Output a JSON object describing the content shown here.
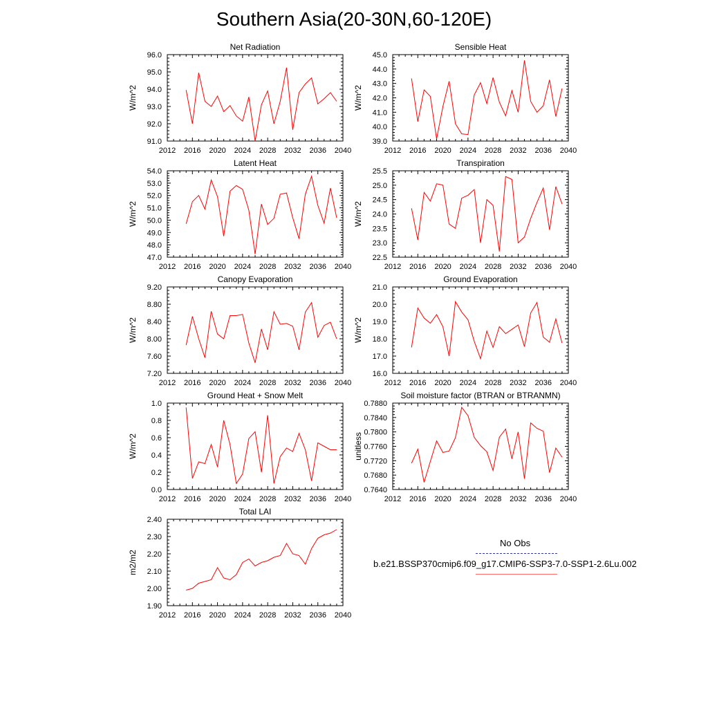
{
  "title": "Southern Asia(20-30N,60-120E)",
  "colors": {
    "model": "#ff0000",
    "obs": "#3333aa",
    "axis": "#000000"
  },
  "legend": {
    "obs_label": "No Obs",
    "model_label": "b.e21.BSSP370cmip6.f09_g17.CMIP6-SSP3-7.0-SSP1-2.6Lu.002"
  },
  "chart_data": [
    {
      "type": "line",
      "title": "Net Radiation",
      "ylabel": "W/m^2",
      "xlim": [
        2012,
        2040
      ],
      "ylim": [
        91.0,
        96.0
      ],
      "xticks": [
        2012,
        2016,
        2020,
        2024,
        2028,
        2032,
        2036,
        2040
      ],
      "yticks": [
        "91.0",
        "92.0",
        "93.0",
        "94.0",
        "95.0",
        "96.0"
      ],
      "x": [
        2015,
        2016,
        2017,
        2018,
        2019,
        2020,
        2021,
        2022,
        2023,
        2024,
        2025,
        2026,
        2027,
        2028,
        2029,
        2030,
        2031,
        2032,
        2033,
        2034,
        2035,
        2036,
        2037,
        2038,
        2039
      ],
      "series": [
        {
          "values": [
            93.95,
            92.0,
            94.95,
            93.3,
            93.0,
            93.6,
            92.7,
            93.05,
            92.45,
            92.15,
            93.55,
            91.0,
            93.1,
            93.9,
            92.0,
            93.3,
            95.25,
            91.65,
            93.8,
            94.3,
            94.65,
            93.15,
            93.45,
            93.8,
            93.3
          ]
        }
      ]
    },
    {
      "type": "line",
      "title": "Sensible Heat",
      "ylabel": "W/m^2",
      "xlim": [
        2012,
        2040
      ],
      "ylim": [
        39.0,
        45.0
      ],
      "xticks": [
        2012,
        2016,
        2020,
        2024,
        2028,
        2032,
        2036,
        2040
      ],
      "yticks": [
        "39.0",
        "40.0",
        "41.0",
        "42.0",
        "43.0",
        "44.0",
        "45.0"
      ],
      "x": [
        2015,
        2016,
        2017,
        2018,
        2019,
        2020,
        2021,
        2022,
        2023,
        2024,
        2025,
        2026,
        2027,
        2028,
        2029,
        2030,
        2031,
        2032,
        2033,
        2034,
        2035,
        2036,
        2037,
        2038,
        2039
      ],
      "series": [
        {
          "values": [
            43.35,
            40.35,
            42.55,
            42.1,
            39.15,
            41.4,
            43.15,
            40.2,
            39.5,
            39.45,
            42.2,
            43.05,
            41.6,
            43.4,
            41.7,
            40.75,
            42.5,
            41.0,
            44.6,
            41.75,
            41.0,
            41.45,
            43.25,
            40.7,
            42.65
          ]
        }
      ]
    },
    {
      "type": "line",
      "title": "Latent Heat",
      "ylabel": "W/m^2",
      "xlim": [
        2012,
        2040
      ],
      "ylim": [
        47.0,
        54.0
      ],
      "xticks": [
        2012,
        2016,
        2020,
        2024,
        2028,
        2032,
        2036,
        2040
      ],
      "yticks": [
        "47.0",
        "48.0",
        "49.0",
        "50.0",
        "51.0",
        "52.0",
        "53.0",
        "54.0"
      ],
      "x": [
        2015,
        2016,
        2017,
        2018,
        2019,
        2020,
        2021,
        2022,
        2023,
        2024,
        2025,
        2026,
        2027,
        2028,
        2029,
        2030,
        2031,
        2032,
        2033,
        2034,
        2035,
        2036,
        2037,
        2038,
        2039
      ],
      "series": [
        {
          "values": [
            49.7,
            51.5,
            52.0,
            50.9,
            53.25,
            51.9,
            48.7,
            52.35,
            52.8,
            52.5,
            50.8,
            47.25,
            51.3,
            49.65,
            50.15,
            52.1,
            52.2,
            50.2,
            48.5,
            52.1,
            53.55,
            51.2,
            49.75,
            52.6,
            50.2
          ]
        }
      ]
    },
    {
      "type": "line",
      "title": "Transpiration",
      "ylabel": "W/m^2",
      "xlim": [
        2012,
        2040
      ],
      "ylim": [
        22.5,
        25.5
      ],
      "xticks": [
        2012,
        2016,
        2020,
        2024,
        2028,
        2032,
        2036,
        2040
      ],
      "yticks": [
        "22.5",
        "23.0",
        "23.5",
        "24.0",
        "24.5",
        "25.0",
        "25.5"
      ],
      "x": [
        2015,
        2016,
        2017,
        2018,
        2019,
        2020,
        2021,
        2022,
        2023,
        2024,
        2025,
        2026,
        2027,
        2028,
        2029,
        2030,
        2031,
        2032,
        2033,
        2034,
        2035,
        2036,
        2037,
        2038,
        2039
      ],
      "series": [
        {
          "values": [
            24.2,
            23.1,
            24.75,
            24.45,
            25.05,
            25.0,
            23.65,
            23.5,
            24.55,
            24.65,
            24.85,
            23.0,
            24.5,
            24.3,
            22.7,
            25.3,
            25.2,
            23.0,
            23.2,
            23.85,
            24.4,
            24.9,
            23.45,
            24.95,
            24.35
          ]
        }
      ]
    },
    {
      "type": "line",
      "title": "Canopy Evaporation",
      "ylabel": "W/m^2",
      "xlim": [
        2012,
        2040
      ],
      "ylim": [
        7.2,
        9.4
      ],
      "xticks": [
        2012,
        2016,
        2020,
        2024,
        2028,
        2032,
        2036,
        2040
      ],
      "yticks": [
        "7.20",
        "7.60",
        "8.00",
        "8.40",
        "8.80",
        "9.20"
      ],
      "x": [
        2015,
        2016,
        2017,
        2018,
        2019,
        2020,
        2021,
        2022,
        2023,
        2024,
        2025,
        2026,
        2027,
        2028,
        2029,
        2030,
        2031,
        2032,
        2033,
        2034,
        2035,
        2036,
        2037,
        2038,
        2039
      ],
      "series": [
        {
          "values": [
            7.92,
            8.65,
            8.08,
            7.6,
            8.78,
            8.2,
            8.08,
            8.67,
            8.67,
            8.7,
            7.97,
            7.47,
            8.33,
            7.8,
            8.77,
            8.45,
            8.47,
            8.4,
            7.8,
            8.76,
            9.0,
            8.12,
            8.42,
            8.5,
            8.08
          ]
        }
      ]
    },
    {
      "type": "line",
      "title": "Ground Evaporation",
      "ylabel": "W/m^2",
      "xlim": [
        2012,
        2040
      ],
      "ylim": [
        16.0,
        21.0
      ],
      "xticks": [
        2012,
        2016,
        2020,
        2024,
        2028,
        2032,
        2036,
        2040
      ],
      "yticks": [
        "16.0",
        "17.0",
        "18.0",
        "19.0",
        "20.0",
        "21.0"
      ],
      "x": [
        2015,
        2016,
        2017,
        2018,
        2019,
        2020,
        2021,
        2022,
        2023,
        2024,
        2025,
        2026,
        2027,
        2028,
        2029,
        2030,
        2031,
        2032,
        2033,
        2034,
        2035,
        2036,
        2037,
        2038,
        2039
      ],
      "series": [
        {
          "values": [
            17.5,
            19.78,
            19.2,
            18.9,
            19.4,
            18.7,
            17.0,
            20.15,
            19.55,
            19.1,
            17.85,
            16.85,
            18.45,
            17.5,
            18.7,
            18.3,
            18.55,
            18.8,
            17.55,
            19.5,
            20.1,
            18.1,
            17.8,
            19.15,
            17.75
          ]
        }
      ]
    },
    {
      "type": "line",
      "title": "Ground Heat + Snow Melt",
      "ylabel": "W/m^2",
      "xlim": [
        2012,
        2040
      ],
      "ylim": [
        0.0,
        1.0
      ],
      "xticks": [
        2012,
        2016,
        2020,
        2024,
        2028,
        2032,
        2036,
        2040
      ],
      "yticks": [
        "0.0",
        "0.2",
        "0.4",
        "0.6",
        "0.8",
        "1.0"
      ],
      "x": [
        2015,
        2016,
        2017,
        2018,
        2019,
        2020,
        2021,
        2022,
        2023,
        2024,
        2025,
        2026,
        2027,
        2028,
        2029,
        2030,
        2031,
        2032,
        2033,
        2034,
        2035,
        2036,
        2037,
        2038,
        2039
      ],
      "series": [
        {
          "values": [
            0.95,
            0.13,
            0.32,
            0.3,
            0.52,
            0.26,
            0.8,
            0.52,
            0.07,
            0.18,
            0.59,
            0.67,
            0.2,
            0.86,
            0.07,
            0.38,
            0.48,
            0.44,
            0.65,
            0.46,
            0.1,
            0.54,
            0.5,
            0.46,
            0.46
          ]
        }
      ]
    },
    {
      "type": "line",
      "title": "Soil moisture factor (BTRAN or BTRANMN)",
      "ylabel": "unitless",
      "xlim": [
        2012,
        2040
      ],
      "ylim": [
        0.764,
        0.788
      ],
      "xticks": [
        2012,
        2016,
        2020,
        2024,
        2028,
        2032,
        2036,
        2040
      ],
      "yticks": [
        "0.7640",
        "0.7680",
        "0.7720",
        "0.7760",
        "0.7800",
        "0.7840",
        "0.7880"
      ],
      "x": [
        2015,
        2016,
        2017,
        2018,
        2019,
        2020,
        2021,
        2022,
        2023,
        2024,
        2025,
        2026,
        2027,
        2028,
        2029,
        2030,
        2031,
        2032,
        2033,
        2034,
        2035,
        2036,
        2037,
        2038,
        2039
      ],
      "series": [
        {
          "values": [
            0.7713,
            0.7752,
            0.766,
            0.7718,
            0.7775,
            0.7743,
            0.7747,
            0.7784,
            0.7868,
            0.7845,
            0.7785,
            0.7762,
            0.7745,
            0.7693,
            0.7785,
            0.7808,
            0.7725,
            0.78,
            0.767,
            0.7825,
            0.781,
            0.7802,
            0.7687,
            0.7755,
            0.773
          ]
        }
      ]
    },
    {
      "type": "line",
      "title": "Total LAI",
      "ylabel": "m2/m2",
      "xlim": [
        2012,
        2040
      ],
      "ylim": [
        1.9,
        2.4
      ],
      "xticks": [
        2012,
        2016,
        2020,
        2024,
        2028,
        2032,
        2036,
        2040
      ],
      "yticks": [
        "1.90",
        "2.00",
        "2.10",
        "2.20",
        "2.30",
        "2.40"
      ],
      "x": [
        2015,
        2016,
        2017,
        2018,
        2019,
        2020,
        2021,
        2022,
        2023,
        2024,
        2025,
        2026,
        2027,
        2028,
        2029,
        2030,
        2031,
        2032,
        2033,
        2034,
        2035,
        2036,
        2037,
        2038,
        2039
      ],
      "series": [
        {
          "values": [
            1.99,
            2.0,
            2.03,
            2.04,
            2.05,
            2.12,
            2.06,
            2.05,
            2.08,
            2.15,
            2.17,
            2.13,
            2.15,
            2.16,
            2.18,
            2.19,
            2.26,
            2.2,
            2.19,
            2.14,
            2.23,
            2.29,
            2.31,
            2.32,
            2.34
          ]
        }
      ]
    }
  ]
}
